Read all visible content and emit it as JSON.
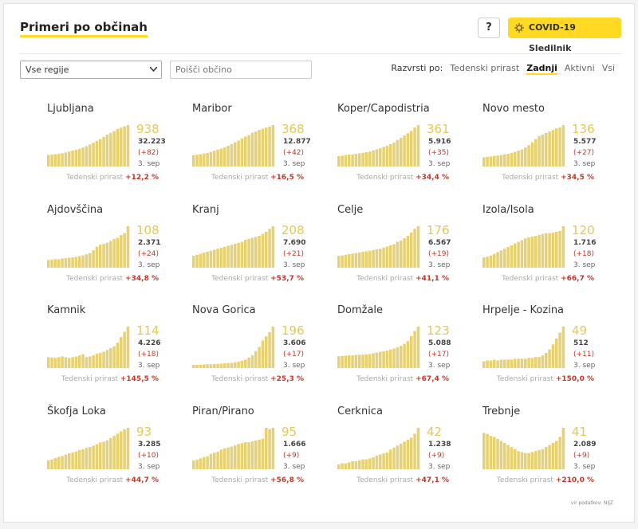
{
  "header": {
    "title": "Primeri po občinah",
    "help": "?",
    "button": "COVID-19 Sledilnik"
  },
  "controls": {
    "region": "Vse regije",
    "search": "Poišči občino",
    "sort_label": "Razvrsti po:",
    "sort_options": [
      "Tedenski prirast",
      "Zadnji",
      "Aktivni",
      "Vsi"
    ],
    "sort_active": 1
  },
  "growth_label": "Tedenski prirast",
  "cards": [
    {
      "name": "Ljubljana",
      "active": 938,
      "total": "32.223",
      "change": "(+82)",
      "date": "3. sep",
      "growth": "+12,2 %",
      "bars": [
        260,
        270,
        280,
        290,
        300,
        320,
        340,
        360,
        380,
        400,
        430,
        460,
        500,
        540,
        580,
        620,
        670,
        720,
        760,
        800,
        850,
        880,
        910,
        938
      ]
    },
    {
      "name": "Maribor",
      "active": 368,
      "total": "12.877",
      "change": "(+42)",
      "date": "3. sep",
      "growth": "+16,5 %",
      "bars": [
        100,
        105,
        110,
        115,
        120,
        130,
        140,
        150,
        160,
        170,
        185,
        200,
        215,
        230,
        250,
        265,
        280,
        300,
        310,
        325,
        335,
        345,
        355,
        368
      ]
    },
    {
      "name": "Koper/Capodistria",
      "active": 361,
      "total": "5.916",
      "change": "(+35)",
      "date": "3. sep",
      "growth": "+34,4 %",
      "bars": [
        90,
        95,
        100,
        105,
        105,
        110,
        115,
        120,
        125,
        130,
        140,
        150,
        160,
        170,
        180,
        195,
        210,
        230,
        250,
        270,
        290,
        310,
        340,
        361
      ]
    },
    {
      "name": "Novo mesto",
      "active": 136,
      "total": "5.577",
      "change": "(+27)",
      "date": "3. sep",
      "growth": "+34,5 %",
      "bars": [
        30,
        32,
        33,
        35,
        36,
        38,
        40,
        42,
        45,
        48,
        52,
        56,
        62,
        70,
        80,
        90,
        100,
        105,
        110,
        115,
        120,
        125,
        128,
        136
      ]
    },
    {
      "name": "Ajdovščina",
      "active": 108,
      "total": "2.371",
      "change": "(+24)",
      "date": "3. sep",
      "growth": "+34,8 %",
      "bars": [
        20,
        21,
        22,
        22,
        24,
        25,
        26,
        27,
        28,
        30,
        32,
        35,
        38,
        45,
        55,
        60,
        62,
        65,
        70,
        75,
        78,
        85,
        90,
        108
      ]
    },
    {
      "name": "Kranj",
      "active": 208,
      "total": "7.690",
      "change": "(+21)",
      "date": "3. sep",
      "growth": "+53,7 %",
      "bars": [
        60,
        65,
        70,
        75,
        80,
        85,
        90,
        95,
        100,
        105,
        110,
        115,
        120,
        125,
        130,
        140,
        145,
        150,
        155,
        160,
        170,
        180,
        195,
        208
      ]
    },
    {
      "name": "Celje",
      "active": 176,
      "total": "6.567",
      "change": "(+19)",
      "date": "3. sep",
      "growth": "+41,1 %",
      "bars": [
        50,
        52,
        55,
        58,
        60,
        62,
        65,
        68,
        70,
        72,
        75,
        78,
        80,
        85,
        90,
        95,
        100,
        110,
        115,
        125,
        135,
        150,
        165,
        176
      ]
    },
    {
      "name": "Izola/Isola",
      "active": 120,
      "total": "1.716",
      "change": "(+18)",
      "date": "3. sep",
      "growth": "+66,7 %",
      "bars": [
        30,
        32,
        35,
        40,
        45,
        50,
        55,
        60,
        65,
        70,
        75,
        80,
        85,
        88,
        90,
        92,
        95,
        98,
        100,
        100,
        102,
        104,
        106,
        120
      ]
    },
    {
      "name": "Kamnik",
      "active": 114,
      "total": "4.226",
      "change": "(+18)",
      "date": "3. sep",
      "growth": "+145,5 %",
      "bars": [
        30,
        29,
        28,
        30,
        32,
        30,
        28,
        30,
        32,
        35,
        38,
        30,
        32,
        35,
        40,
        42,
        45,
        50,
        55,
        60,
        70,
        85,
        100,
        114
      ]
    },
    {
      "name": "Nova Gorica",
      "active": 196,
      "total": "3.606",
      "change": "(+17)",
      "date": "3. sep",
      "growth": "+25,3 %",
      "bars": [
        15,
        15,
        16,
        17,
        18,
        18,
        19,
        20,
        21,
        22,
        24,
        25,
        28,
        30,
        35,
        40,
        50,
        60,
        80,
        100,
        130,
        150,
        170,
        196
      ]
    },
    {
      "name": "Domžale",
      "active": 123,
      "total": "5.088",
      "change": "(+17)",
      "date": "3. sep",
      "growth": "+67,4 %",
      "bars": [
        35,
        36,
        37,
        38,
        38,
        39,
        40,
        40,
        41,
        42,
        44,
        46,
        48,
        50,
        52,
        55,
        58,
        62,
        66,
        72,
        80,
        95,
        110,
        123
      ]
    },
    {
      "name": "Hrpelje - Kozina",
      "active": 49,
      "total": "512",
      "change": "(+11)",
      "date": "3. sep",
      "growth": "+150,0 %",
      "bars": [
        8,
        9,
        9,
        10,
        9,
        10,
        10,
        10,
        10,
        11,
        11,
        11,
        11,
        12,
        12,
        13,
        13,
        15,
        18,
        22,
        28,
        35,
        42,
        49
      ]
    },
    {
      "name": "Škofja Loka",
      "active": 93,
      "total": "3.285",
      "change": "(+10)",
      "date": "3. sep",
      "growth": "+44,7 %",
      "bars": [
        20,
        22,
        25,
        28,
        30,
        33,
        36,
        38,
        40,
        43,
        45,
        48,
        50,
        53,
        56,
        60,
        62,
        65,
        70,
        75,
        80,
        85,
        90,
        93
      ]
    },
    {
      "name": "Piran/Pirano",
      "active": 95,
      "total": "1.666",
      "change": "(+9)",
      "date": "3. sep",
      "growth": "+56,8 %",
      "bars": [
        20,
        22,
        25,
        28,
        30,
        35,
        38,
        40,
        45,
        48,
        50,
        52,
        55,
        58,
        60,
        62,
        62,
        64,
        66,
        68,
        70,
        95,
        92,
        95
      ]
    },
    {
      "name": "Cerknica",
      "active": 42,
      "total": "1.238",
      "change": "(+9)",
      "date": "3. sep",
      "growth": "+47,1 %",
      "bars": [
        5,
        6,
        6,
        7,
        8,
        8,
        9,
        10,
        10,
        11,
        12,
        14,
        15,
        16,
        17,
        20,
        22,
        24,
        26,
        28,
        30,
        32,
        36,
        42
      ]
    },
    {
      "name": "Trebnje",
      "active": 41,
      "total": "2.089",
      "change": "(+9)",
      "date": "3. sep",
      "growth": "+210,0 %",
      "bars": [
        36,
        35,
        33,
        32,
        30,
        28,
        26,
        24,
        22,
        20,
        18,
        17,
        16,
        16,
        17,
        18,
        19,
        20,
        22,
        24,
        26,
        28,
        32,
        41
      ]
    }
  ],
  "source": "vir podatkov: NIJZ"
}
